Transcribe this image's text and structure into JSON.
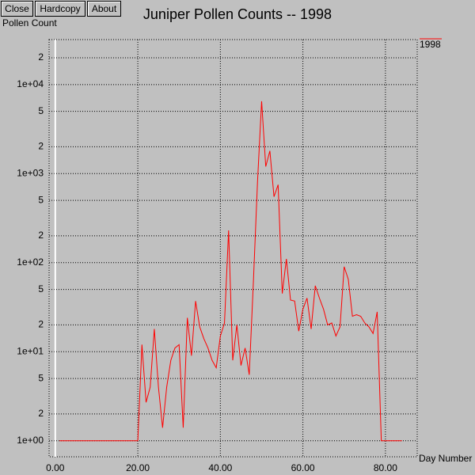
{
  "window": {
    "buttons": [
      "Close",
      "Hardcopy",
      "About"
    ]
  },
  "chart_data": {
    "type": "line",
    "title": "Juniper Pollen Counts -- 1998",
    "y_label": "Pollen Count",
    "x_label": "Day Number",
    "x": [
      1,
      2,
      3,
      4,
      5,
      6,
      7,
      8,
      9,
      10,
      11,
      12,
      13,
      14,
      15,
      16,
      17,
      18,
      19,
      20,
      21,
      22,
      23,
      24,
      25,
      26,
      27,
      28,
      29,
      30,
      31,
      32,
      33,
      34,
      35,
      36,
      37,
      38,
      39,
      40,
      41,
      42,
      43,
      44,
      45,
      46,
      47,
      48,
      49,
      50,
      51,
      52,
      53,
      54,
      55,
      56,
      57,
      58,
      59,
      60,
      61,
      62,
      63,
      64,
      65,
      66,
      67,
      68,
      69,
      70,
      71,
      72,
      73,
      74,
      75,
      76,
      77,
      78,
      79,
      80,
      81,
      82,
      83,
      84
    ],
    "series": [
      {
        "name": "1998",
        "color": "#ff0000",
        "values": [
          1,
          1,
          1,
          1,
          1,
          1,
          1,
          1,
          1,
          1,
          1,
          1,
          1,
          1,
          1,
          1,
          1,
          1,
          1,
          1,
          12,
          2.7,
          4,
          18,
          4,
          1.4,
          4,
          8,
          11,
          12,
          1.4,
          24,
          9,
          37,
          19,
          14,
          11,
          8,
          6.6,
          15,
          21,
          230,
          8,
          20,
          7,
          11,
          5.5,
          60,
          800,
          6500,
          1200,
          1800,
          550,
          750,
          45,
          110,
          38,
          37,
          17,
          30,
          40,
          18,
          55,
          40,
          30,
          20,
          21,
          15,
          19,
          90,
          65,
          25,
          26,
          25,
          21,
          19,
          16,
          28,
          1,
          1,
          1,
          1,
          1,
          1
        ]
      }
    ],
    "log_y": true,
    "grid": true,
    "legend": "top-right",
    "xlim": [
      -1.5,
      87.7
    ],
    "ylim": [
      0.66,
      32000
    ],
    "xticks": [
      {
        "value": 0,
        "label": "0.00"
      },
      {
        "value": 20,
        "label": "20.00"
      },
      {
        "value": 40,
        "label": "40.00"
      },
      {
        "value": 60,
        "label": "60.00"
      },
      {
        "value": 80,
        "label": "80.00"
      }
    ],
    "yticks": [
      {
        "value": 1,
        "label": "1e+00"
      },
      2,
      5,
      {
        "value": 10,
        "label": "1e+01"
      },
      {
        "value": 20,
        "label": "2"
      },
      {
        "value": 50,
        "label": "5"
      },
      {
        "value": 100,
        "label": "1e+02"
      },
      {
        "value": 200,
        "label": "2"
      },
      {
        "value": 500,
        "label": "5"
      },
      {
        "value": 1000,
        "label": "1e+03"
      },
      {
        "value": 2000,
        "label": "2"
      },
      {
        "value": 5000,
        "label": "5"
      },
      {
        "value": 10000,
        "label": "1e+04"
      },
      {
        "value": 20000,
        "label": "2"
      }
    ]
  }
}
